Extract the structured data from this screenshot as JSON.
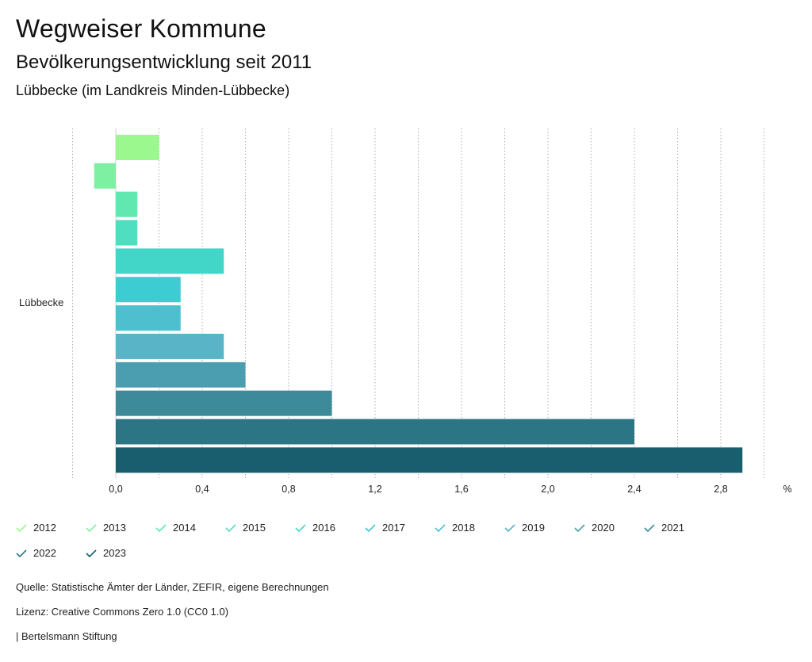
{
  "header": {
    "title": "Wegweiser Kommune",
    "subtitle": "Bevölkerungsentwicklung seit 2011",
    "region": "Lübbecke (im Landkreis Minden-Lübbecke)"
  },
  "chart_data": {
    "type": "bar",
    "orientation": "horizontal",
    "category": "Lübbecke",
    "series": [
      {
        "name": "2012",
        "value": 0.2,
        "color": "#9af88e"
      },
      {
        "name": "2013",
        "value": -0.1,
        "color": "#7ef0a2"
      },
      {
        "name": "2014",
        "value": 0.1,
        "color": "#61e8b0"
      },
      {
        "name": "2015",
        "value": 0.1,
        "color": "#4fdec0"
      },
      {
        "name": "2016",
        "value": 0.5,
        "color": "#41d6c8"
      },
      {
        "name": "2017",
        "value": 0.3,
        "color": "#3dccd2"
      },
      {
        "name": "2018",
        "value": 0.3,
        "color": "#4ebfcf"
      },
      {
        "name": "2019",
        "value": 0.5,
        "color": "#5ab4c7"
      },
      {
        "name": "2020",
        "value": 0.6,
        "color": "#4a9eb0"
      },
      {
        "name": "2021",
        "value": 1.0,
        "color": "#3c8a9a"
      },
      {
        "name": "2022",
        "value": 2.4,
        "color": "#2b7585"
      },
      {
        "name": "2023",
        "value": 2.9,
        "color": "#195e6e"
      }
    ],
    "xlim": [
      -0.2,
      3.0
    ],
    "xticks": [
      "0,0",
      "0,4",
      "0,8",
      "1,2",
      "1,6",
      "2,0",
      "2,4",
      "2,8"
    ],
    "xtick_values": [
      0,
      0.4,
      0.8,
      1.2,
      1.6,
      2.0,
      2.4,
      2.8
    ],
    "unit": "%",
    "grid": true
  },
  "footer": {
    "source": "Quelle: Statistische Ämter der Länder, ZEFIR, eigene Berechnungen",
    "license": "Lizenz: Creative Commons Zero 1.0 (CC0 1.0)",
    "publisher": "| Bertelsmann Stiftung"
  }
}
